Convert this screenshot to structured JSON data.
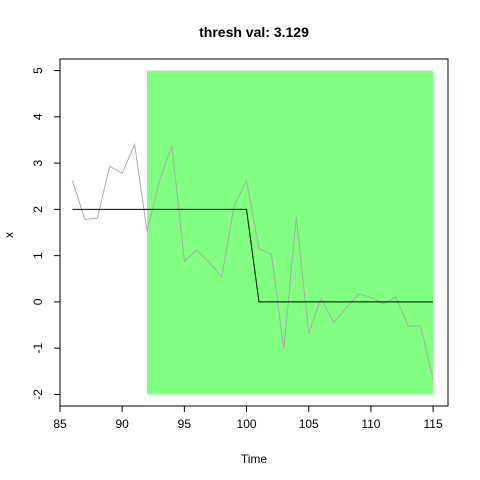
{
  "chart_data": {
    "type": "line",
    "title": "thresh val: 3.129",
    "xlabel": "Time",
    "ylabel": "x",
    "xlim": [
      85.0,
      116.2
    ],
    "ylim": [
      -2.25,
      5.25
    ],
    "xticks": [
      85,
      90,
      95,
      100,
      105,
      110,
      115
    ],
    "yticks": [
      -2,
      -1,
      0,
      1,
      2,
      3,
      4,
      5
    ],
    "grid": false,
    "region": {
      "x_start": 92,
      "x_end": 115,
      "y_start": -2,
      "y_end": 5,
      "color": "#80ff80"
    },
    "series": [
      {
        "color": "#aaaaaa",
        "x": [
          86,
          87,
          88,
          89,
          90,
          91,
          92,
          93,
          94,
          95,
          96,
          97,
          98,
          99,
          100,
          101,
          102,
          103,
          104,
          105,
          106,
          107,
          108,
          109,
          110,
          111,
          112,
          113,
          114,
          115
        ],
        "y": [
          2.62,
          1.78,
          1.81,
          2.93,
          2.78,
          3.4,
          1.52,
          2.62,
          3.38,
          0.88,
          1.12,
          0.86,
          0.54,
          2.08,
          2.62,
          1.15,
          1.03,
          -1.02,
          1.84,
          -0.68,
          0.08,
          -0.44,
          -0.14,
          0.17,
          0.1,
          -0.04,
          0.1,
          -0.52,
          -0.52,
          -1.67
        ]
      },
      {
        "color": "#000000",
        "x": [
          86,
          100,
          101,
          115
        ],
        "y": [
          2,
          2,
          0,
          0
        ]
      }
    ]
  }
}
